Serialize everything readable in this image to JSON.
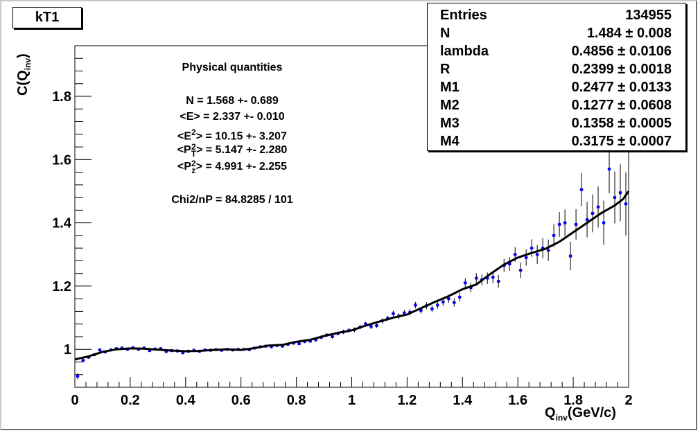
{
  "title": "kT1",
  "stats": [
    {
      "key": "Entries",
      "value": "134955"
    },
    {
      "key": "N",
      "value": "1.484 ± 0.008"
    },
    {
      "key": "lambda",
      "value": "0.4856 ± 0.0106"
    },
    {
      "key": "R",
      "value": "0.2399 ± 0.0018"
    },
    {
      "key": "M1",
      "value": "0.2477 ± 0.0133"
    },
    {
      "key": "M2",
      "value": "0.1277 ± 0.0608"
    },
    {
      "key": "M3",
      "value": "0.1358 ± 0.0005"
    },
    {
      "key": "M4",
      "value": "0.3175 ± 0.0007"
    }
  ],
  "physical": {
    "heading": "Physical quantities",
    "n": "N = 1.568 +- 0.689",
    "e": "<E> = 2.337 +- 0.010",
    "e2_pre": "<E",
    "e2_sup": "2",
    "e2_post": "> = 10.15 +- 3.207",
    "pt_pre": "<P",
    "pt_sup": "2",
    "pt_sub": "T",
    "pt_post": "> = 5.147 +- 2.280",
    "pz_pre": "<P",
    "pz_sup": "2",
    "pz_sub": "z",
    "pz_post": "> = 4.991 +- 2.255",
    "chi": "Chi2/nP = 84.8285 /      101"
  },
  "chart_data": {
    "type": "scatter",
    "ylabel_main": "C(Q",
    "ylabel_sub": "inv",
    "ylabel_end": ")",
    "xlabel_main": "Q",
    "xlabel_sub": "inv",
    "xlabel_end": "(GeV/c)",
    "xlim": [
      0,
      2
    ],
    "ylim": [
      0.88,
      1.96
    ],
    "x_ticks": [
      "0",
      "0.2",
      "0.4",
      "0.6",
      "0.8",
      "1",
      "1.2",
      "1.4",
      "1.6",
      "1.8",
      "2"
    ],
    "y_ticks": [
      {
        "v": 1.0,
        "label": "1"
      },
      {
        "v": 1.2,
        "label": "1.2"
      },
      {
        "v": 1.4,
        "label": "1.4"
      },
      {
        "v": 1.6,
        "label": "1.6"
      },
      {
        "v": 1.8,
        "label": "1.8"
      }
    ],
    "points_color": "#0000ff",
    "points": [
      [
        0.01,
        0.915,
        0.01
      ],
      [
        0.03,
        0.965,
        0.006
      ],
      [
        0.05,
        0.975,
        0.005
      ],
      [
        0.07,
        0.983,
        0.005
      ],
      [
        0.09,
        0.998,
        0.005
      ],
      [
        0.11,
        0.992,
        0.005
      ],
      [
        0.13,
        0.998,
        0.005
      ],
      [
        0.15,
        1.002,
        0.005
      ],
      [
        0.17,
        1.004,
        0.005
      ],
      [
        0.19,
        1.0,
        0.005
      ],
      [
        0.21,
        1.005,
        0.005
      ],
      [
        0.23,
        1.0,
        0.005
      ],
      [
        0.25,
        1.004,
        0.005
      ],
      [
        0.27,
        0.996,
        0.005
      ],
      [
        0.29,
        1.001,
        0.005
      ],
      [
        0.31,
        1.002,
        0.005
      ],
      [
        0.33,
        0.993,
        0.005
      ],
      [
        0.35,
        0.996,
        0.005
      ],
      [
        0.37,
        0.995,
        0.005
      ],
      [
        0.39,
        0.989,
        0.005
      ],
      [
        0.41,
        0.994,
        0.005
      ],
      [
        0.43,
        0.997,
        0.005
      ],
      [
        0.45,
        0.994,
        0.005
      ],
      [
        0.47,
        0.998,
        0.005
      ],
      [
        0.49,
        0.997,
        0.005
      ],
      [
        0.51,
        0.999,
        0.005
      ],
      [
        0.53,
        0.997,
        0.005
      ],
      [
        0.55,
        1.0,
        0.005
      ],
      [
        0.57,
        0.998,
        0.005
      ],
      [
        0.59,
        1.0,
        0.005
      ],
      [
        0.61,
        1.0,
        0.005
      ],
      [
        0.63,
        0.999,
        0.005
      ],
      [
        0.65,
        1.004,
        0.005
      ],
      [
        0.67,
        1.008,
        0.005
      ],
      [
        0.69,
        1.01,
        0.005
      ],
      [
        0.71,
        1.008,
        0.005
      ],
      [
        0.73,
        1.012,
        0.005
      ],
      [
        0.75,
        1.01,
        0.005
      ],
      [
        0.77,
        1.016,
        0.006
      ],
      [
        0.79,
        1.02,
        0.006
      ],
      [
        0.81,
        1.018,
        0.006
      ],
      [
        0.83,
        1.025,
        0.006
      ],
      [
        0.85,
        1.026,
        0.006
      ],
      [
        0.87,
        1.03,
        0.006
      ],
      [
        0.89,
        1.038,
        0.006
      ],
      [
        0.91,
        1.045,
        0.006
      ],
      [
        0.93,
        1.04,
        0.006
      ],
      [
        0.95,
        1.05,
        0.006
      ],
      [
        0.97,
        1.055,
        0.007
      ],
      [
        0.99,
        1.06,
        0.007
      ],
      [
        1.01,
        1.062,
        0.007
      ],
      [
        1.03,
        1.07,
        0.007
      ],
      [
        1.05,
        1.08,
        0.007
      ],
      [
        1.07,
        1.072,
        0.008
      ],
      [
        1.09,
        1.075,
        0.008
      ],
      [
        1.11,
        1.09,
        0.008
      ],
      [
        1.13,
        1.098,
        0.008
      ],
      [
        1.15,
        1.113,
        0.009
      ],
      [
        1.17,
        1.105,
        0.009
      ],
      [
        1.19,
        1.115,
        0.009
      ],
      [
        1.21,
        1.117,
        0.01
      ],
      [
        1.23,
        1.14,
        0.01
      ],
      [
        1.25,
        1.123,
        0.01
      ],
      [
        1.27,
        1.138,
        0.011
      ],
      [
        1.29,
        1.128,
        0.011
      ],
      [
        1.31,
        1.14,
        0.012
      ],
      [
        1.33,
        1.15,
        0.012
      ],
      [
        1.35,
        1.16,
        0.013
      ],
      [
        1.37,
        1.148,
        0.013
      ],
      [
        1.39,
        1.165,
        0.014
      ],
      [
        1.41,
        1.21,
        0.015
      ],
      [
        1.43,
        1.195,
        0.015
      ],
      [
        1.45,
        1.225,
        0.016
      ],
      [
        1.47,
        1.22,
        0.017
      ],
      [
        1.49,
        1.225,
        0.018
      ],
      [
        1.51,
        1.228,
        0.019
      ],
      [
        1.53,
        1.215,
        0.02
      ],
      [
        1.55,
        1.265,
        0.021
      ],
      [
        1.57,
        1.27,
        0.022
      ],
      [
        1.59,
        1.3,
        0.023
      ],
      [
        1.61,
        1.25,
        0.025
      ],
      [
        1.63,
        1.29,
        0.026
      ],
      [
        1.65,
        1.32,
        0.028
      ],
      [
        1.67,
        1.3,
        0.03
      ],
      [
        1.69,
        1.32,
        0.032
      ],
      [
        1.71,
        1.313,
        0.034
      ],
      [
        1.73,
        1.36,
        0.036
      ],
      [
        1.75,
        1.395,
        0.039
      ],
      [
        1.77,
        1.4,
        0.042
      ],
      [
        1.79,
        1.295,
        0.045
      ],
      [
        1.81,
        1.395,
        0.048
      ],
      [
        1.83,
        1.505,
        0.052
      ],
      [
        1.85,
        1.41,
        0.056
      ],
      [
        1.87,
        1.43,
        0.06
      ],
      [
        1.89,
        1.45,
        0.065
      ],
      [
        1.91,
        1.4,
        0.07
      ],
      [
        1.93,
        1.57,
        0.076
      ],
      [
        1.95,
        1.48,
        0.082
      ],
      [
        1.97,
        1.495,
        0.09
      ],
      [
        1.99,
        1.46,
        0.1
      ]
    ],
    "fit_line": [
      [
        0.0,
        0.968
      ],
      [
        0.05,
        0.978
      ],
      [
        0.1,
        0.992
      ],
      [
        0.15,
        1.0
      ],
      [
        0.2,
        1.003
      ],
      [
        0.25,
        1.002
      ],
      [
        0.3,
        0.999
      ],
      [
        0.35,
        0.996
      ],
      [
        0.4,
        0.994
      ],
      [
        0.45,
        0.995
      ],
      [
        0.5,
        0.998
      ],
      [
        0.55,
        1.0
      ],
      [
        0.6,
        0.998
      ],
      [
        0.65,
        1.004
      ],
      [
        0.7,
        1.012
      ],
      [
        0.75,
        1.014
      ],
      [
        0.8,
        1.024
      ],
      [
        0.85,
        1.03
      ],
      [
        0.9,
        1.042
      ],
      [
        0.95,
        1.052
      ],
      [
        1.0,
        1.06
      ],
      [
        1.05,
        1.075
      ],
      [
        1.1,
        1.088
      ],
      [
        1.15,
        1.1
      ],
      [
        1.2,
        1.11
      ],
      [
        1.25,
        1.13
      ],
      [
        1.3,
        1.15
      ],
      [
        1.35,
        1.168
      ],
      [
        1.4,
        1.19
      ],
      [
        1.45,
        1.205
      ],
      [
        1.5,
        1.238
      ],
      [
        1.55,
        1.268
      ],
      [
        1.6,
        1.29
      ],
      [
        1.65,
        1.305
      ],
      [
        1.7,
        1.318
      ],
      [
        1.75,
        1.34
      ],
      [
        1.8,
        1.37
      ],
      [
        1.85,
        1.4
      ],
      [
        1.9,
        1.43
      ],
      [
        1.95,
        1.455
      ],
      [
        1.98,
        1.475
      ],
      [
        2.0,
        1.5
      ]
    ]
  }
}
